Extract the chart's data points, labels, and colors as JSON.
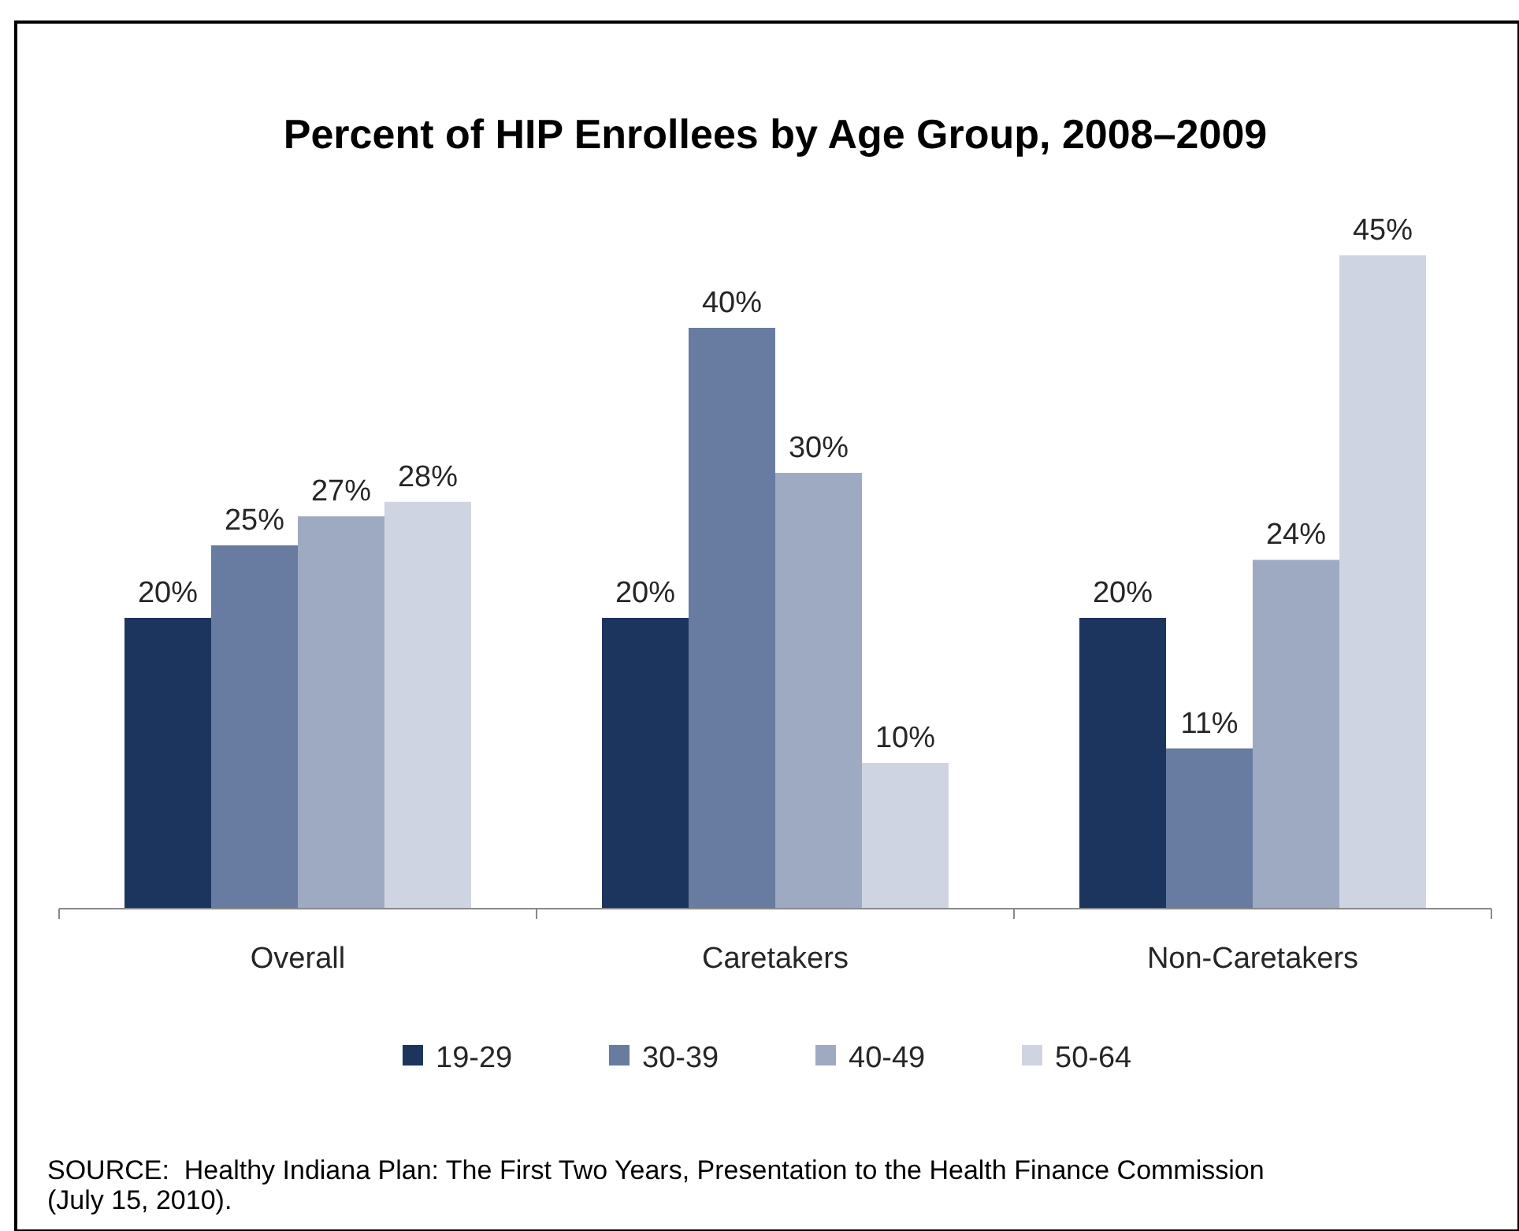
{
  "chart_data": {
    "type": "bar",
    "title": "Percent of HIP Enrollees by Age Group, 2008–2009",
    "categories": [
      "Overall",
      "Caretakers",
      "Non-Caretakers"
    ],
    "series": [
      {
        "name": "19-29",
        "color": "#1c355e",
        "values": [
          20,
          20,
          20
        ],
        "value_labels": [
          "20%",
          "20%",
          "20%"
        ]
      },
      {
        "name": "30-39",
        "color": "#687ba1",
        "values": [
          25,
          40,
          11
        ],
        "value_labels": [
          "25%",
          "40%",
          "11%"
        ]
      },
      {
        "name": "40-49",
        "color": "#9eaac2",
        "values": [
          27,
          30,
          24
        ],
        "value_labels": [
          "27%",
          "30%",
          "24%"
        ]
      },
      {
        "name": "50-64",
        "color": "#ced4e1",
        "values": [
          28,
          10,
          45
        ],
        "value_labels": [
          "28%",
          "10%",
          "45%"
        ]
      }
    ],
    "tick_labels": "x",
    "legend": "bottom",
    "annotations": [
      "SOURCE:  Healthy Indiana Plan: The First Two Years, Presentation to the Health Finance Commission (July 15, 2010)."
    ]
  }
}
